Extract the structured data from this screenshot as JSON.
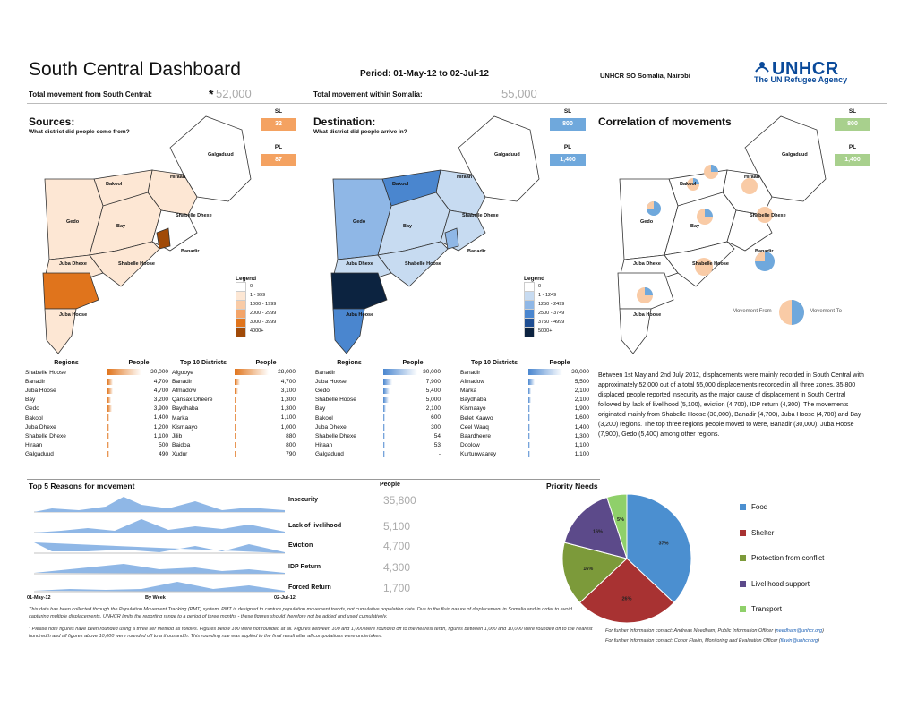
{
  "header": {
    "title": "South Central Dashboard",
    "period": "Period: 01-May-12 to 02-Jul-12",
    "office": "UNHCR SO Somalia, Nairobi",
    "logo_name": "UNHCR",
    "logo_tag": "The UN Refugee Agency",
    "total_from_label": "Total movement from South Central:",
    "total_from_value": "52,000",
    "total_within_label": "Total movement within Somalia:",
    "total_within_value": "55,000",
    "asterisk": "*"
  },
  "panels": {
    "sources": {
      "title": "Sources:",
      "subtitle": "What district did people come from?",
      "sl_label": "SL",
      "sl_value": "32",
      "pl_label": "PL",
      "pl_value": "87",
      "color": "#f4a261"
    },
    "destination": {
      "title": "Destination:",
      "subtitle": "What district did people arrive in?",
      "sl_label": "SL",
      "sl_value": "800",
      "pl_label": "PL",
      "pl_value": "1,400",
      "color": "#6fa8dc"
    },
    "correlation": {
      "title": "Correlation of movements",
      "sl_label": "SL",
      "sl_value": "800",
      "pl_label": "PL",
      "pl_value": "1,400",
      "color": "#a8d08d",
      "movement_from": "Movement From",
      "movement_to": "Movement To"
    }
  },
  "map_labels": [
    "Galgaduud",
    "Hiraan",
    "Bakool",
    "Gedo",
    "Bay",
    "Shabelle Dhexe",
    "Banadir",
    "Juba Dhexe",
    "Shabelle Hoose",
    "Juba Hoose"
  ],
  "legend_orange": {
    "title": "Legend",
    "rows": [
      {
        "label": "0",
        "color": "#ffffff"
      },
      {
        "label": "1 - 999",
        "color": "#fde7d4"
      },
      {
        "label": "1000 - 1999",
        "color": "#f9cba6"
      },
      {
        "label": "2000 - 2999",
        "color": "#f3a469"
      },
      {
        "label": "3000 - 3999",
        "color": "#e0741c"
      },
      {
        "label": "4000+",
        "color": "#a04a08"
      }
    ]
  },
  "legend_blue": {
    "title": "Legend",
    "rows": [
      {
        "label": "0",
        "color": "#ffffff"
      },
      {
        "label": "1 - 1249",
        "color": "#c7dbf1"
      },
      {
        "label": "1250 - 2499",
        "color": "#8fb7e6"
      },
      {
        "label": "2500 - 3749",
        "color": "#4a86cf"
      },
      {
        "label": "3750 - 4999",
        "color": "#1f4f94"
      },
      {
        "label": "5000+",
        "color": "#0c2340"
      }
    ]
  },
  "sources_regions": {
    "header_region": "Regions",
    "header_people": "People",
    "rows": [
      {
        "name": "Shabelle Hoose",
        "value": "30,000",
        "n": 30000
      },
      {
        "name": "Banadir",
        "value": "4,700",
        "n": 4700
      },
      {
        "name": "Juba Hoose",
        "value": "4,700",
        "n": 4700
      },
      {
        "name": "Bay",
        "value": "3,200",
        "n": 3200
      },
      {
        "name": "Gedo",
        "value": "3,900",
        "n": 3900
      },
      {
        "name": "Bakool",
        "value": "1,400",
        "n": 1400
      },
      {
        "name": "Juba Dhexe",
        "value": "1,200",
        "n": 1200
      },
      {
        "name": "Shabelle Dhexe",
        "value": "1,100",
        "n": 1100
      },
      {
        "name": "Hiraan",
        "value": "500",
        "n": 500
      },
      {
        "name": "Galgaduud",
        "value": "490",
        "n": 490
      }
    ]
  },
  "sources_districts": {
    "header_region": "Top 10 Districts",
    "header_people": "People",
    "rows": [
      {
        "name": "Afgooye",
        "value": "28,000",
        "n": 28000
      },
      {
        "name": "Banadir",
        "value": "4,700",
        "n": 4700
      },
      {
        "name": "Afmadow",
        "value": "3,100",
        "n": 3100
      },
      {
        "name": "Qansax Dheere",
        "value": "1,300",
        "n": 1300
      },
      {
        "name": "Baydhaba",
        "value": "1,300",
        "n": 1300
      },
      {
        "name": "Marka",
        "value": "1,100",
        "n": 1100
      },
      {
        "name": "Kismaayo",
        "value": "1,000",
        "n": 1000
      },
      {
        "name": "Jilib",
        "value": "880",
        "n": 880
      },
      {
        "name": "Baidoa",
        "value": "800",
        "n": 800
      },
      {
        "name": "Xudur",
        "value": "790",
        "n": 790
      }
    ]
  },
  "dest_regions": {
    "header_region": "Regions",
    "header_people": "People",
    "rows": [
      {
        "name": "Banadir",
        "value": "30,000",
        "n": 30000
      },
      {
        "name": "Juba Hoose",
        "value": "7,900",
        "n": 7900
      },
      {
        "name": "Gedo",
        "value": "5,400",
        "n": 5400
      },
      {
        "name": "Shabelle Hoose",
        "value": "5,000",
        "n": 5000
      },
      {
        "name": "Bay",
        "value": "2,100",
        "n": 2100
      },
      {
        "name": "Bakool",
        "value": "600",
        "n": 600
      },
      {
        "name": "Juba Dhexe",
        "value": "300",
        "n": 300
      },
      {
        "name": "Shabelle Dhexe",
        "value": "54",
        "n": 54
      },
      {
        "name": "Hiraan",
        "value": "53",
        "n": 53
      },
      {
        "name": "Galgaduud",
        "value": "-",
        "n": 0
      }
    ]
  },
  "dest_districts": {
    "header_region": "Top 10 Districts",
    "header_people": "People",
    "rows": [
      {
        "name": "Banadir",
        "value": "30,000",
        "n": 30000
      },
      {
        "name": "Afmadow",
        "value": "5,500",
        "n": 5500
      },
      {
        "name": "Marka",
        "value": "2,100",
        "n": 2100
      },
      {
        "name": "Baydhaba",
        "value": "2,100",
        "n": 2100
      },
      {
        "name": "Kismaayo",
        "value": "1,900",
        "n": 1900
      },
      {
        "name": "Belet Xaawo",
        "value": "1,600",
        "n": 1600
      },
      {
        "name": "Ceel Waaq",
        "value": "1,400",
        "n": 1400
      },
      {
        "name": "Baardheere",
        "value": "1,300",
        "n": 1300
      },
      {
        "name": "Doolow",
        "value": "1,100",
        "n": 1100
      },
      {
        "name": "Kurtunwaarey",
        "value": "1,100",
        "n": 1100
      }
    ]
  },
  "summary": "Between 1st May and 2nd July 2012, displacements were mainly recorded in South Central with approximately 52,000 out of a total 55,000 displacements recorded in all three zones. 35,800 displaced people reported insecurity as the major cause of displacement in South Central followed by, lack of livelihood (5,100), eviction (4,700), IDP return (4,300). The movements originated mainly from Shabelle Hoose (30,000), Banadir (4,700), Juba Hoose (4,700) and Bay (3,200) regions. The top three regions people moved to were, Banadir (30,000), Juba Hoose (7,900), Gedo (5,400) among other regions.",
  "reasons": {
    "title": "Top 5 Reasons for movement",
    "people_header": "People",
    "axis_start": "01-May-12",
    "axis_mid": "By Week",
    "axis_end": "02-Jul-12",
    "rows": [
      {
        "label": "Insecurity",
        "value": "35,800"
      },
      {
        "label": "Lack of livelihood",
        "value": "5,100"
      },
      {
        "label": "Eviction",
        "value": "4,700"
      },
      {
        "label": "IDP Return",
        "value": "4,300"
      },
      {
        "label": "Forced Return",
        "value": "1,700"
      }
    ]
  },
  "chart_data": {
    "type": "pie",
    "title": "Priority Needs",
    "series": [
      {
        "name": "Food",
        "value": 37,
        "label": "37%",
        "color": "#4b8fd0"
      },
      {
        "name": "Shelter",
        "value": 26,
        "label": "26%",
        "color": "#a83232"
      },
      {
        "name": "Protection from conflict",
        "value": 16,
        "label": "16%",
        "color": "#7c9a3a"
      },
      {
        "name": "Livelihood support",
        "value": 16,
        "label": "16%",
        "color": "#5c4a8a"
      },
      {
        "name": "Transport",
        "value": 5,
        "label": "5%",
        "color": "#8fd06a"
      }
    ]
  },
  "notes": {
    "note1": "This data has been collected through the Population Movement Tracking (PMT) system. PMT is designed to capture population movement trends, not cumulative population data. Due to the fluid nature of displacement in Somalia and in order to avoid capturing multiple displacements, UNHCR limits the reporting range to a period of three months - these figures should therefore not be added and used cumulatively.",
    "note2": "* Please note figures have been rounded using a three tier method as follows. Figures below 100 were not rounded at all. Figures between 100 and 1,000 were rounded off to the nearest tenth, figures between 1,000 and 10,000 were rounded off to the nearest hundredth and all figures above 10,000 were rounded off to a thousandth. This rounding rule was applied to the final result after all computations were undertaken.",
    "contact1_text": "For further information contact: Andreas Needham, Public Information Officer (",
    "contact1_email": "needham@unhcr.org",
    "contact1_end": ")",
    "contact2_text": "For further information contact: Conor Flavin, Monitoring and Evaluation Officer (",
    "contact2_email": "flavin@unhcr.org",
    "contact2_end": ")"
  }
}
